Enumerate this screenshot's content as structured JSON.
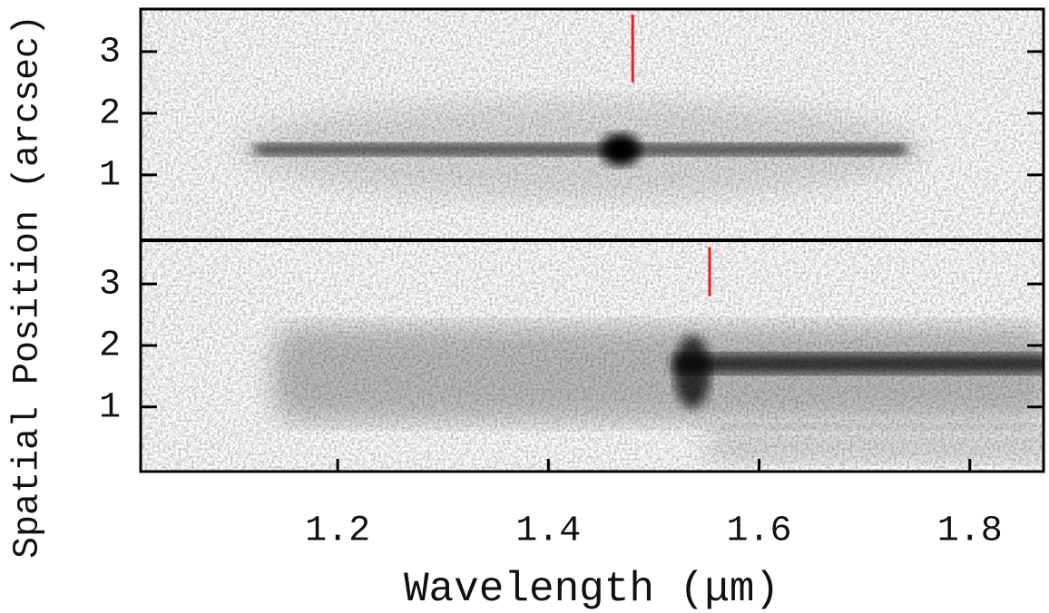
{
  "chart_data": [
    {
      "type": "image",
      "ylabel": "Spatial Position (arcsec)",
      "xlim": [
        1.013,
        1.87
      ],
      "ylim": [
        -0.06,
        3.69
      ],
      "yticks": [
        1,
        2,
        3
      ],
      "marker": {
        "x": 1.48,
        "y": [
          2.5,
          3.6
        ],
        "color": "#e8201e"
      }
    },
    {
      "type": "image",
      "xlabel": "Wavelength (μm)",
      "xlim": [
        1.013,
        1.87
      ],
      "xticks": [
        1.2,
        1.4,
        1.6,
        1.8
      ],
      "ylim": [
        -0.05,
        3.71
      ],
      "yticks": [
        1,
        2,
        3
      ],
      "marker": {
        "x": 1.553,
        "y": [
          2.8,
          3.6
        ],
        "color": "#e8201e"
      }
    }
  ]
}
